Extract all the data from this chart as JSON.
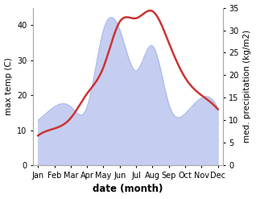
{
  "months": [
    "Jan",
    "Feb",
    "Mar",
    "Apr",
    "May",
    "Jun",
    "Jul",
    "Aug",
    "Sep",
    "Oct",
    "Nov",
    "Dec"
  ],
  "month_indices": [
    0,
    1,
    2,
    3,
    4,
    5,
    6,
    7,
    8,
    9,
    10,
    11
  ],
  "temperature": [
    8.5,
    10.5,
    13.5,
    20.5,
    28.0,
    41.0,
    42.0,
    44.0,
    35.0,
    25.0,
    20.0,
    16.0
  ],
  "precipitation_right": [
    10.0,
    13.0,
    13.0,
    13.0,
    30.0,
    30.0,
    21.0,
    26.5,
    13.5,
    11.5,
    15.0,
    12.5
  ],
  "temp_color": "#cc3333",
  "precip_fill_color": "#c5cef0",
  "precip_line_color": "#b0bce8",
  "xlabel": "date (month)",
  "ylabel_left": "max temp (C)",
  "ylabel_right": "med. precipitation (kg/m2)",
  "ylim_left": [
    0,
    45
  ],
  "ylim_right": [
    0,
    35
  ],
  "yticks_left": [
    0,
    10,
    20,
    30,
    40
  ],
  "yticks_right": [
    0,
    5,
    10,
    15,
    20,
    25,
    30,
    35
  ],
  "bg_color": "#ffffff",
  "label_fontsize": 7.5,
  "tick_fontsize": 7.0,
  "xlabel_fontsize": 8.5
}
